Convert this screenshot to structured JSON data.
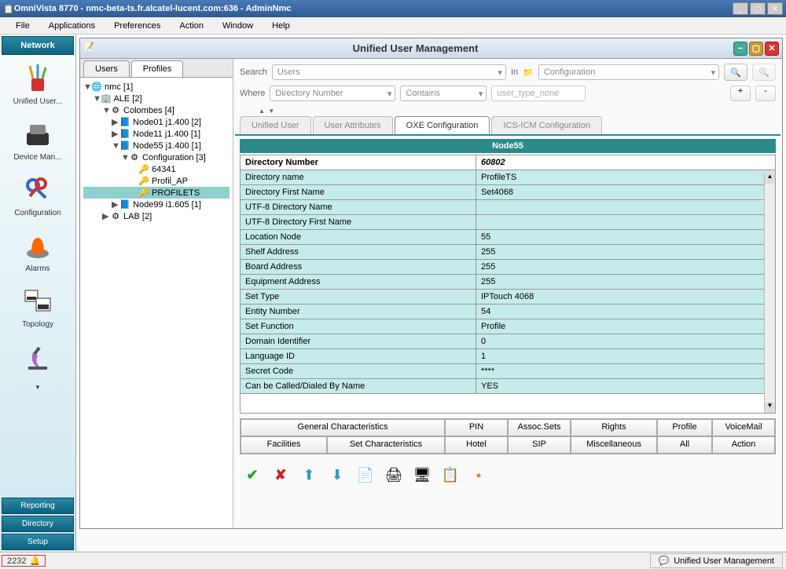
{
  "title": "OmniVista 8770 - nmc-beta-ts.fr.alcatel-lucent.com:636 - AdminNmc",
  "menus": [
    "File",
    "Applications",
    "Preferences",
    "Action",
    "Window",
    "Help"
  ],
  "sidebar": {
    "top": "Network",
    "items": [
      {
        "label": "Unified User...",
        "icon": "cup"
      },
      {
        "label": "Device Man...",
        "icon": "phone"
      },
      {
        "label": "Configuration",
        "icon": "keys"
      },
      {
        "label": "Alarms",
        "icon": "alarm"
      },
      {
        "label": "Topology",
        "icon": "topo"
      },
      {
        "label": "",
        "icon": "microscope"
      }
    ],
    "bottom": [
      "Reporting",
      "Directory",
      "Setup"
    ]
  },
  "iwindow_title": "Unified User Management",
  "tree_tabs": [
    "Users",
    "Profiles"
  ],
  "tree_tab_active": 1,
  "tree": [
    {
      "ind": 0,
      "tog": "▼",
      "icon": "🌐",
      "label": "nmc [1]"
    },
    {
      "ind": 1,
      "tog": "▼",
      "icon": "🏢",
      "label": "ALE [2]"
    },
    {
      "ind": 2,
      "tog": "▼",
      "icon": "⚙",
      "label": "Colombes [4]"
    },
    {
      "ind": 3,
      "tog": "▶",
      "icon": "📘",
      "label": "Node01 j1.400 [2]"
    },
    {
      "ind": 3,
      "tog": "▶",
      "icon": "📘",
      "label": "Node11 j1.400 [1]"
    },
    {
      "ind": 3,
      "tog": "▼",
      "icon": "📘",
      "label": "Node55 j1.400 [1]"
    },
    {
      "ind": 4,
      "tog": "▼",
      "icon": "⚙",
      "label": "Configuration [3]"
    },
    {
      "ind": 5,
      "tog": "",
      "icon": "🔑",
      "label": "64341"
    },
    {
      "ind": 5,
      "tog": "",
      "icon": "🔑",
      "label": "Profil_AP"
    },
    {
      "ind": 5,
      "tog": "",
      "icon": "🔑",
      "label": "PROFILETS",
      "sel": true
    },
    {
      "ind": 3,
      "tog": "▶",
      "icon": "📘",
      "label": "Node99 i1.605 [1]"
    },
    {
      "ind": 2,
      "tog": "▶",
      "icon": "⚙",
      "label": "LAB [2]"
    }
  ],
  "search": {
    "label": "Search",
    "combo1": "Users",
    "in": "In",
    "combo2": "Configuration"
  },
  "where": {
    "label": "Where",
    "combo1": "Directory Number",
    "combo2": "Contains",
    "txt": "user_type_none"
  },
  "subtabs": [
    "Unified User",
    "User Attributes",
    "OXE Configuration",
    "ICS-ICM Configuration"
  ],
  "subtab_active": 2,
  "node_header": "Node55",
  "properties": [
    {
      "lbl": "Directory Number",
      "val": "60802",
      "hdr": true
    },
    {
      "lbl": "Directory name",
      "val": "ProfileTS"
    },
    {
      "lbl": "Directory First Name",
      "val": "Set4068"
    },
    {
      "lbl": "UTF-8 Directory Name",
      "val": ""
    },
    {
      "lbl": "UTF-8 Directory First Name",
      "val": ""
    },
    {
      "lbl": "Location Node",
      "val": "55"
    },
    {
      "lbl": "Shelf Address",
      "val": "255"
    },
    {
      "lbl": "Board Address",
      "val": "255"
    },
    {
      "lbl": "Equipment Address",
      "val": "255"
    },
    {
      "lbl": "Set Type",
      "val": "IPTouch 4068"
    },
    {
      "lbl": "Entity Number",
      "val": "54"
    },
    {
      "lbl": "Set Function",
      "val": "Profile"
    },
    {
      "lbl": "Domain Identifier",
      "val": "0"
    },
    {
      "lbl": "Language ID",
      "val": "1"
    },
    {
      "lbl": "Secret Code",
      "val": "****"
    },
    {
      "lbl": "Can be Called/Dialed By Name",
      "val": "YES"
    }
  ],
  "grid_buttons": [
    "General Characteristics",
    "PIN",
    "Assoc.Sets",
    "Rights",
    "Profile",
    "VoiceMail",
    "Facilities",
    "Set Characteristics",
    "Hotel",
    "SIP",
    "Miscellaneous",
    "All",
    "Action"
  ],
  "status_alarm": "2232",
  "status_context": "Unified User Management",
  "colors": {
    "accent": "#2a8aa5",
    "teal": "#2a8a8a",
    "prop_bg": "#c5ebeb",
    "sel_bg": "#8ed0cd",
    "titlebar": "#2d5a94"
  }
}
